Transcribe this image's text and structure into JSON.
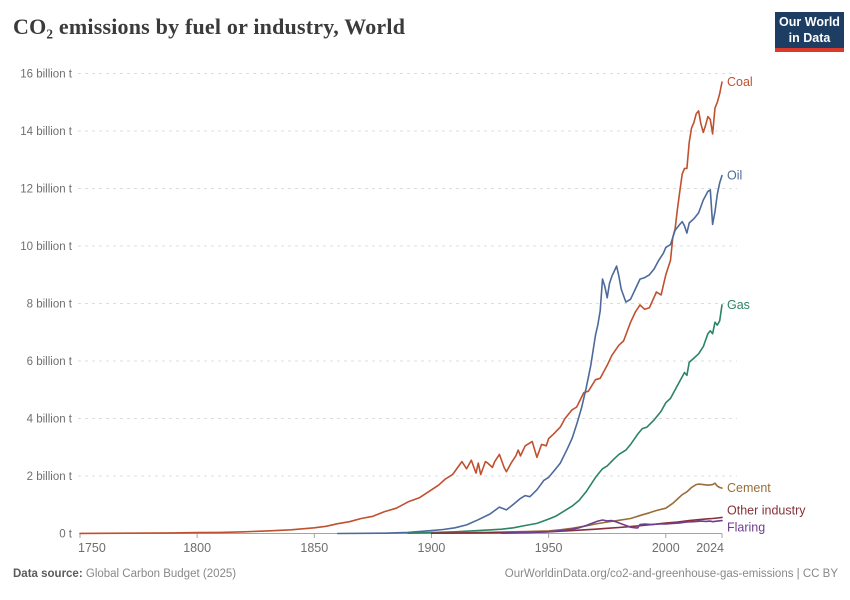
{
  "header": {
    "title": "CO₂ emissions by fuel or industry, World",
    "logo": {
      "line1": "Our World",
      "line2": "in Data",
      "bg": "#1d3d63",
      "accent": "#d93a2b"
    }
  },
  "footer": {
    "source_label": "Data source:",
    "source_value": "Global Carbon Budget (2025)",
    "attribution": "OurWorldinData.org/co2-and-greenhouse-gas-emissions | CC BY"
  },
  "chart_data": {
    "type": "line",
    "title": "CO₂ emissions by fuel or industry, World",
    "xlabel": "",
    "ylabel": "",
    "unit": "billion t",
    "xlim": [
      1750,
      2024
    ],
    "ylim": [
      0,
      16
    ],
    "grid": "horizontal-dashed",
    "legend_position": "line-end-labels-right",
    "x_ticks": [
      1750,
      1800,
      1850,
      1900,
      1950,
      2000,
      2024
    ],
    "y_ticks": [
      {
        "value": 0,
        "label": "0 t"
      },
      {
        "value": 2,
        "label": "2 billion t"
      },
      {
        "value": 4,
        "label": "4 billion t"
      },
      {
        "value": 6,
        "label": "6 billion t"
      },
      {
        "value": 8,
        "label": "8 billion t"
      },
      {
        "value": 10,
        "label": "10 billion t"
      },
      {
        "value": 12,
        "label": "12 billion t"
      },
      {
        "value": 14,
        "label": "14 billion t"
      },
      {
        "value": 16,
        "label": "16 billion t"
      }
    ],
    "series": [
      {
        "name": "Coal",
        "color": "#c0512f",
        "label_dy": 0,
        "points": [
          [
            1750,
            0.003
          ],
          [
            1770,
            0.01
          ],
          [
            1790,
            0.02
          ],
          [
            1800,
            0.03
          ],
          [
            1810,
            0.04
          ],
          [
            1820,
            0.06
          ],
          [
            1830,
            0.09
          ],
          [
            1840,
            0.13
          ],
          [
            1850,
            0.2
          ],
          [
            1855,
            0.25
          ],
          [
            1860,
            0.34
          ],
          [
            1865,
            0.41
          ],
          [
            1870,
            0.52
          ],
          [
            1875,
            0.6
          ],
          [
            1880,
            0.76
          ],
          [
            1885,
            0.88
          ],
          [
            1890,
            1.1
          ],
          [
            1895,
            1.25
          ],
          [
            1900,
            1.52
          ],
          [
            1903,
            1.68
          ],
          [
            1906,
            1.9
          ],
          [
            1909,
            2.05
          ],
          [
            1913,
            2.5
          ],
          [
            1915,
            2.25
          ],
          [
            1917,
            2.55
          ],
          [
            1919,
            2.1
          ],
          [
            1920,
            2.45
          ],
          [
            1921,
            2.05
          ],
          [
            1923,
            2.5
          ],
          [
            1924,
            2.45
          ],
          [
            1926,
            2.3
          ],
          [
            1927,
            2.5
          ],
          [
            1929,
            2.75
          ],
          [
            1931,
            2.3
          ],
          [
            1932,
            2.15
          ],
          [
            1934,
            2.45
          ],
          [
            1936,
            2.7
          ],
          [
            1937,
            2.9
          ],
          [
            1938,
            2.7
          ],
          [
            1940,
            3.05
          ],
          [
            1942,
            3.15
          ],
          [
            1943,
            3.2
          ],
          [
            1945,
            2.65
          ],
          [
            1947,
            3.1
          ],
          [
            1949,
            3.05
          ],
          [
            1950,
            3.3
          ],
          [
            1952,
            3.45
          ],
          [
            1955,
            3.7
          ],
          [
            1957,
            4.0
          ],
          [
            1960,
            4.3
          ],
          [
            1962,
            4.4
          ],
          [
            1965,
            4.9
          ],
          [
            1967,
            4.95
          ],
          [
            1970,
            5.35
          ],
          [
            1972,
            5.4
          ],
          [
            1975,
            5.85
          ],
          [
            1977,
            6.2
          ],
          [
            1980,
            6.55
          ],
          [
            1982,
            6.7
          ],
          [
            1985,
            7.35
          ],
          [
            1987,
            7.7
          ],
          [
            1989,
            7.95
          ],
          [
            1991,
            7.8
          ],
          [
            1993,
            7.85
          ],
          [
            1996,
            8.4
          ],
          [
            1998,
            8.3
          ],
          [
            2000,
            9.0
          ],
          [
            2002,
            9.5
          ],
          [
            2003,
            10.3
          ],
          [
            2004,
            10.6
          ],
          [
            2005,
            11.3
          ],
          [
            2006,
            11.9
          ],
          [
            2007,
            12.5
          ],
          [
            2008,
            12.7
          ],
          [
            2009,
            12.7
          ],
          [
            2010,
            13.6
          ],
          [
            2011,
            14.1
          ],
          [
            2012,
            14.3
          ],
          [
            2013,
            14.6
          ],
          [
            2014,
            14.7
          ],
          [
            2015,
            14.25
          ],
          [
            2016,
            13.95
          ],
          [
            2017,
            14.2
          ],
          [
            2018,
            14.5
          ],
          [
            2019,
            14.4
          ],
          [
            2020,
            13.9
          ],
          [
            2021,
            14.8
          ],
          [
            2022,
            15.0
          ],
          [
            2023,
            15.3
          ],
          [
            2024,
            15.7
          ]
        ]
      },
      {
        "name": "Oil",
        "color": "#4c6a9c",
        "label_dy": 0,
        "points": [
          [
            1860,
            0.0
          ],
          [
            1880,
            0.01
          ],
          [
            1890,
            0.04
          ],
          [
            1900,
            0.1
          ],
          [
            1905,
            0.14
          ],
          [
            1910,
            0.2
          ],
          [
            1915,
            0.3
          ],
          [
            1920,
            0.48
          ],
          [
            1925,
            0.68
          ],
          [
            1929,
            0.92
          ],
          [
            1932,
            0.82
          ],
          [
            1935,
            1.02
          ],
          [
            1938,
            1.22
          ],
          [
            1940,
            1.32
          ],
          [
            1942,
            1.28
          ],
          [
            1945,
            1.52
          ],
          [
            1948,
            1.85
          ],
          [
            1950,
            1.95
          ],
          [
            1952,
            2.15
          ],
          [
            1955,
            2.45
          ],
          [
            1958,
            2.95
          ],
          [
            1960,
            3.3
          ],
          [
            1962,
            3.8
          ],
          [
            1964,
            4.35
          ],
          [
            1966,
            5.05
          ],
          [
            1968,
            5.85
          ],
          [
            1970,
            6.9
          ],
          [
            1971,
            7.25
          ],
          [
            1972,
            7.75
          ],
          [
            1973,
            8.85
          ],
          [
            1974,
            8.6
          ],
          [
            1975,
            8.2
          ],
          [
            1976,
            8.7
          ],
          [
            1977,
            8.95
          ],
          [
            1979,
            9.3
          ],
          [
            1980,
            8.95
          ],
          [
            1981,
            8.5
          ],
          [
            1983,
            8.05
          ],
          [
            1985,
            8.15
          ],
          [
            1987,
            8.5
          ],
          [
            1989,
            8.85
          ],
          [
            1991,
            8.9
          ],
          [
            1993,
            9.0
          ],
          [
            1995,
            9.2
          ],
          [
            1997,
            9.5
          ],
          [
            1999,
            9.75
          ],
          [
            2000,
            9.95
          ],
          [
            2002,
            10.05
          ],
          [
            2004,
            10.55
          ],
          [
            2006,
            10.75
          ],
          [
            2007,
            10.85
          ],
          [
            2008,
            10.7
          ],
          [
            2009,
            10.45
          ],
          [
            2010,
            10.8
          ],
          [
            2012,
            10.95
          ],
          [
            2014,
            11.15
          ],
          [
            2016,
            11.6
          ],
          [
            2018,
            11.9
          ],
          [
            2019,
            11.95
          ],
          [
            2020,
            10.75
          ],
          [
            2021,
            11.2
          ],
          [
            2022,
            11.8
          ],
          [
            2023,
            12.2
          ],
          [
            2024,
            12.45
          ]
        ]
      },
      {
        "name": "Gas",
        "color": "#2c8465",
        "label_dy": 0,
        "points": [
          [
            1890,
            0.01
          ],
          [
            1900,
            0.03
          ],
          [
            1910,
            0.06
          ],
          [
            1920,
            0.1
          ],
          [
            1930,
            0.15
          ],
          [
            1935,
            0.2
          ],
          [
            1940,
            0.28
          ],
          [
            1945,
            0.35
          ],
          [
            1950,
            0.5
          ],
          [
            1953,
            0.6
          ],
          [
            1956,
            0.75
          ],
          [
            1960,
            0.95
          ],
          [
            1963,
            1.15
          ],
          [
            1966,
            1.45
          ],
          [
            1970,
            1.95
          ],
          [
            1973,
            2.25
          ],
          [
            1975,
            2.35
          ],
          [
            1978,
            2.6
          ],
          [
            1980,
            2.75
          ],
          [
            1983,
            2.9
          ],
          [
            1985,
            3.1
          ],
          [
            1988,
            3.45
          ],
          [
            1990,
            3.65
          ],
          [
            1992,
            3.7
          ],
          [
            1995,
            3.95
          ],
          [
            1998,
            4.25
          ],
          [
            2000,
            4.55
          ],
          [
            2002,
            4.7
          ],
          [
            2005,
            5.15
          ],
          [
            2008,
            5.6
          ],
          [
            2009,
            5.5
          ],
          [
            2010,
            5.95
          ],
          [
            2012,
            6.1
          ],
          [
            2014,
            6.25
          ],
          [
            2016,
            6.5
          ],
          [
            2018,
            6.95
          ],
          [
            2019,
            7.05
          ],
          [
            2020,
            6.95
          ],
          [
            2021,
            7.35
          ],
          [
            2022,
            7.25
          ],
          [
            2023,
            7.4
          ],
          [
            2024,
            7.95
          ]
        ]
      },
      {
        "name": "Cement",
        "color": "#996d39",
        "label_dy": 0,
        "points": [
          [
            1900,
            0.01
          ],
          [
            1910,
            0.02
          ],
          [
            1920,
            0.03
          ],
          [
            1930,
            0.05
          ],
          [
            1940,
            0.07
          ],
          [
            1950,
            0.09
          ],
          [
            1955,
            0.13
          ],
          [
            1960,
            0.18
          ],
          [
            1965,
            0.25
          ],
          [
            1970,
            0.33
          ],
          [
            1975,
            0.4
          ],
          [
            1980,
            0.46
          ],
          [
            1985,
            0.52
          ],
          [
            1990,
            0.65
          ],
          [
            1993,
            0.72
          ],
          [
            1996,
            0.8
          ],
          [
            2000,
            0.88
          ],
          [
            2003,
            1.05
          ],
          [
            2005,
            1.2
          ],
          [
            2007,
            1.35
          ],
          [
            2009,
            1.45
          ],
          [
            2011,
            1.6
          ],
          [
            2013,
            1.7
          ],
          [
            2014,
            1.72
          ],
          [
            2016,
            1.7
          ],
          [
            2018,
            1.68
          ],
          [
            2020,
            1.7
          ],
          [
            2021,
            1.75
          ],
          [
            2022,
            1.65
          ],
          [
            2023,
            1.6
          ],
          [
            2024,
            1.58
          ]
        ]
      },
      {
        "name": "Other industry",
        "color": "#883039",
        "label_dy": -7,
        "points": [
          [
            1900,
            0.01
          ],
          [
            1920,
            0.02
          ],
          [
            1940,
            0.04
          ],
          [
            1950,
            0.06
          ],
          [
            1960,
            0.1
          ],
          [
            1970,
            0.15
          ],
          [
            1975,
            0.18
          ],
          [
            1980,
            0.21
          ],
          [
            1985,
            0.24
          ],
          [
            1990,
            0.28
          ],
          [
            1995,
            0.32
          ],
          [
            2000,
            0.36
          ],
          [
            2005,
            0.4
          ],
          [
            2010,
            0.45
          ],
          [
            2015,
            0.49
          ],
          [
            2018,
            0.51
          ],
          [
            2020,
            0.52
          ],
          [
            2022,
            0.54
          ],
          [
            2024,
            0.56
          ]
        ]
      },
      {
        "name": "Flaring",
        "color": "#6d3e91",
        "label_dy": 7,
        "points": [
          [
            1930,
            0.01
          ],
          [
            1940,
            0.03
          ],
          [
            1950,
            0.06
          ],
          [
            1955,
            0.1
          ],
          [
            1960,
            0.15
          ],
          [
            1963,
            0.2
          ],
          [
            1966,
            0.28
          ],
          [
            1969,
            0.37
          ],
          [
            1971,
            0.43
          ],
          [
            1973,
            0.47
          ],
          [
            1975,
            0.44
          ],
          [
            1977,
            0.45
          ],
          [
            1979,
            0.4
          ],
          [
            1981,
            0.34
          ],
          [
            1983,
            0.28
          ],
          [
            1985,
            0.22
          ],
          [
            1987,
            0.2
          ],
          [
            1988,
            0.19
          ],
          [
            1989,
            0.31
          ],
          [
            1991,
            0.33
          ],
          [
            1994,
            0.31
          ],
          [
            1997,
            0.33
          ],
          [
            2000,
            0.33
          ],
          [
            2003,
            0.35
          ],
          [
            2006,
            0.37
          ],
          [
            2009,
            0.4
          ],
          [
            2012,
            0.41
          ],
          [
            2015,
            0.43
          ],
          [
            2017,
            0.42
          ],
          [
            2019,
            0.43
          ],
          [
            2020,
            0.41
          ],
          [
            2022,
            0.43
          ],
          [
            2024,
            0.45
          ]
        ]
      }
    ]
  }
}
